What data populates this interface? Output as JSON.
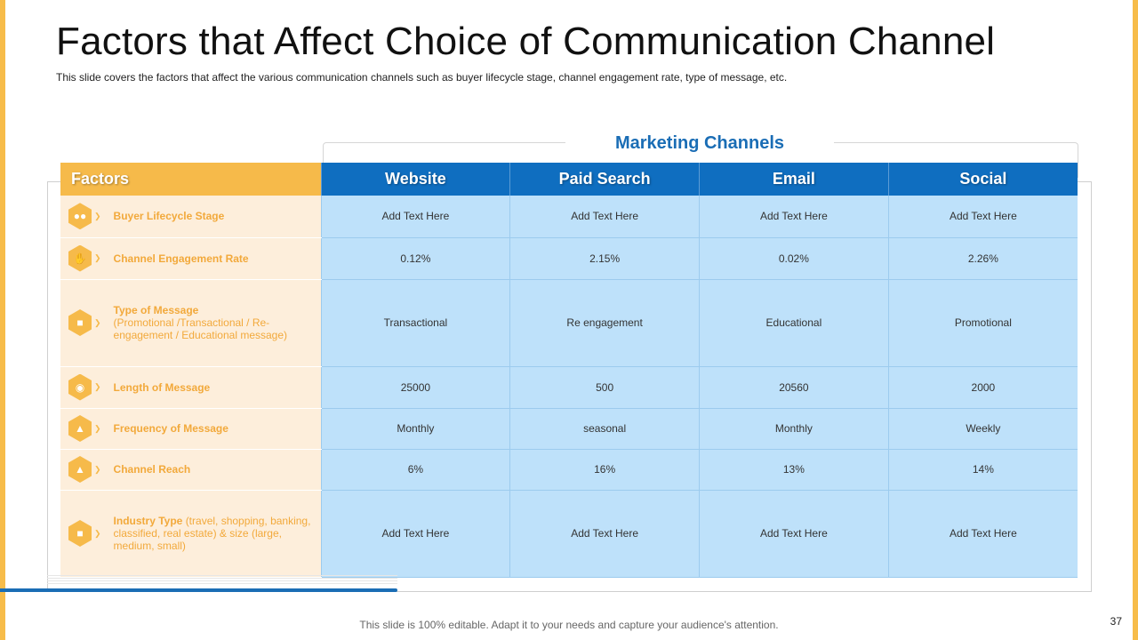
{
  "slide": {
    "title": "Factors that Affect Choice of Communication Channel",
    "subtitle": "This slide covers the factors that affect the various communication channels such as buyer lifecycle stage, channel engagement rate, type of message, etc.",
    "group_label": "Marketing Channels",
    "footer": "This slide is 100% editable. Adapt it to your needs and capture your audience's attention.",
    "page_number": "37"
  },
  "table": {
    "factors_header": "Factors",
    "channels": [
      "Website",
      "Paid Search",
      "Email",
      "Social"
    ],
    "rows": [
      {
        "factor": "Buyer Lifecycle Stage",
        "detail": "",
        "icon": "people-icon",
        "values": [
          "Add Text Here",
          "Add Text Here",
          "Add Text Here",
          "Add Text Here"
        ]
      },
      {
        "factor": "Channel Engagement Rate",
        "detail": "",
        "icon": "hand-thumbs-icon",
        "values": [
          "0.12%",
          "2.15%",
          "0.02%",
          "2.26%"
        ]
      },
      {
        "factor": "Type of Message",
        "detail": "(Promotional /Transactional / Re-engagement / Educational message)",
        "icon": "chat-bubbles-icon",
        "values": [
          "Transactional",
          "Re engagement",
          "Educational",
          "Promotional"
        ]
      },
      {
        "factor": "Length of Message",
        "detail": "",
        "icon": "video-camera-icon",
        "values": [
          "25000",
          "500",
          "20560",
          "2000"
        ]
      },
      {
        "factor": "Frequency of Message",
        "detail": "",
        "icon": "megaphone-icon",
        "values": [
          "Monthly",
          "seasonal",
          "Monthly",
          "Weekly"
        ]
      },
      {
        "factor": "Channel Reach",
        "detail": "",
        "icon": "growth-person-icon",
        "values": [
          "6%",
          "16%",
          "13%",
          "14%"
        ]
      },
      {
        "factor": "Industry Type",
        "detail": "(travel, shopping, banking, classified, real estate) & size (large, medium, small)",
        "icon": "factory-icon",
        "values": [
          "Add Text Here",
          "Add Text Here",
          "Add Text Here",
          "Add Text Here"
        ]
      }
    ]
  },
  "colors": {
    "accent_orange": "#F6BA4A",
    "channel_blue": "#0F6EC0",
    "cell_blue": "#BEE1FA",
    "factor_bg": "#FDEEDB",
    "factor_text": "#F2A93B"
  }
}
